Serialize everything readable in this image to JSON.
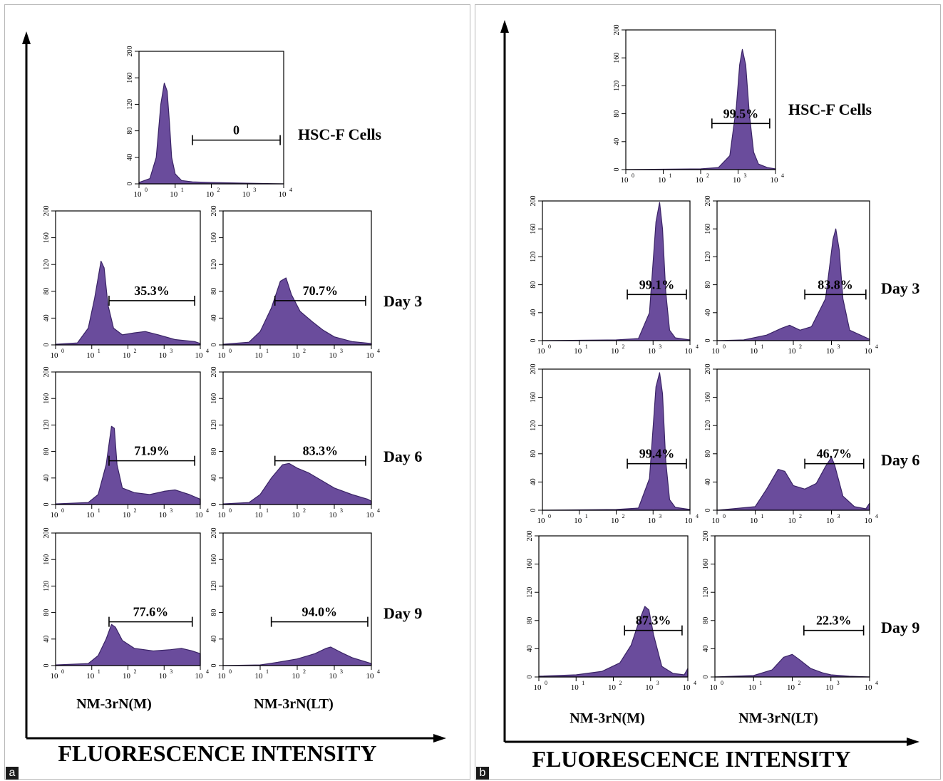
{
  "colors": {
    "fill": "#6a4c9c",
    "edge": "#3a2466",
    "axis": "#000000"
  },
  "x_tick_labels": [
    "10",
    "10",
    "10",
    "10",
    "10"
  ],
  "x_tick_exponents": [
    "0",
    "1",
    "2",
    "3",
    "4"
  ],
  "y_tick_labels": [
    "0",
    "40",
    "80",
    "120",
    "160",
    "200"
  ],
  "panels": [
    {
      "letter": "a",
      "axis_title": "FLUORESCENCE INTENSITY",
      "cell_line_title": "HSC-F Cells",
      "column_labels": [
        "NM-3rN(M)",
        "NM-3rN(LT)"
      ],
      "day_labels": [
        "Day 3",
        "Day 6",
        "Day 9"
      ]
    },
    {
      "letter": "b",
      "axis_title": "FLUORESCENCE INTENSITY",
      "cell_line_title": "HSC-F Cells",
      "column_labels": [
        "NM-3rN(M)",
        "NM-3rN(LT)"
      ],
      "day_labels": [
        "Day 3",
        "Day 6",
        "Day 9"
      ]
    }
  ],
  "chart_data": [
    {
      "type": "area",
      "panel": "a",
      "row": "HSC-F Cells",
      "column": "",
      "xscale": "log",
      "xlim": [
        1,
        10000
      ],
      "ylim": [
        0,
        200
      ],
      "gate_label": "0",
      "gate_range": [
        30,
        8000
      ],
      "x": [
        1,
        2,
        3,
        4,
        5,
        6,
        7,
        8,
        10,
        15,
        30,
        100,
        1000,
        10000
      ],
      "y": [
        2,
        8,
        40,
        120,
        152,
        140,
        90,
        40,
        15,
        5,
        3,
        2,
        1,
        0
      ]
    },
    {
      "type": "area",
      "panel": "a",
      "row": "Day 3",
      "column": "NM-3rN(M)",
      "xscale": "log",
      "xlim": [
        1,
        10000
      ],
      "ylim": [
        0,
        200
      ],
      "gate_label": "35.3%",
      "gate_range": [
        30,
        7000
      ],
      "x": [
        1,
        4,
        8,
        12,
        18,
        22,
        28,
        40,
        70,
        150,
        300,
        700,
        2000,
        7000,
        10000
      ],
      "y": [
        1,
        3,
        25,
        70,
        125,
        115,
        60,
        25,
        15,
        18,
        20,
        15,
        8,
        5,
        2
      ]
    },
    {
      "type": "area",
      "panel": "a",
      "row": "Day 3",
      "column": "NM-3rN(LT)",
      "xscale": "log",
      "xlim": [
        1,
        10000
      ],
      "ylim": [
        0,
        200
      ],
      "gate_label": "70.7%",
      "gate_range": [
        25,
        7000
      ],
      "x": [
        1,
        5,
        10,
        20,
        35,
        50,
        70,
        120,
        250,
        500,
        1000,
        3000,
        10000
      ],
      "y": [
        1,
        4,
        20,
        55,
        95,
        100,
        75,
        50,
        35,
        22,
        12,
        5,
        2
      ]
    },
    {
      "type": "area",
      "panel": "a",
      "row": "Day 6",
      "column": "NM-3rN(M)",
      "xscale": "log",
      "xlim": [
        1,
        10000
      ],
      "ylim": [
        0,
        200
      ],
      "gate_label": "71.9%",
      "gate_range": [
        30,
        7000
      ],
      "x": [
        1,
        8,
        15,
        25,
        35,
        42,
        50,
        70,
        150,
        400,
        1000,
        2000,
        5000,
        10000
      ],
      "y": [
        1,
        3,
        15,
        60,
        118,
        115,
        60,
        25,
        18,
        15,
        20,
        22,
        15,
        8
      ]
    },
    {
      "type": "area",
      "panel": "a",
      "row": "Day 6",
      "column": "NM-3rN(LT)",
      "xscale": "log",
      "xlim": [
        1,
        10000
      ],
      "ylim": [
        0,
        200
      ],
      "gate_label": "83.3%",
      "gate_range": [
        25,
        7000
      ],
      "x": [
        1,
        5,
        10,
        20,
        40,
        60,
        100,
        200,
        500,
        1000,
        3000,
        8000,
        10000
      ],
      "y": [
        1,
        3,
        15,
        40,
        60,
        62,
        55,
        48,
        35,
        25,
        15,
        8,
        5
      ]
    },
    {
      "type": "area",
      "panel": "a",
      "row": "Day 9",
      "column": "NM-3rN(M)",
      "xscale": "log",
      "xlim": [
        1,
        10000
      ],
      "ylim": [
        0,
        200
      ],
      "gate_label": "77.6%",
      "gate_range": [
        30,
        6000
      ],
      "x": [
        1,
        8,
        15,
        25,
        35,
        45,
        70,
        150,
        500,
        1500,
        3000,
        6000,
        10000
      ],
      "y": [
        1,
        3,
        15,
        40,
        62,
        58,
        38,
        26,
        22,
        24,
        26,
        22,
        18
      ]
    },
    {
      "type": "area",
      "panel": "a",
      "row": "Day 9",
      "column": "NM-3rN(LT)",
      "xscale": "log",
      "xlim": [
        1,
        10000
      ],
      "ylim": [
        0,
        200
      ],
      "gate_label": "94.0%",
      "gate_range": [
        20,
        8000
      ],
      "x": [
        1,
        10,
        30,
        100,
        300,
        600,
        800,
        1500,
        3000,
        10000
      ],
      "y": [
        0,
        1,
        5,
        10,
        18,
        26,
        28,
        20,
        12,
        3
      ]
    },
    {
      "type": "area",
      "panel": "b",
      "row": "HSC-F Cells",
      "column": "",
      "xscale": "log",
      "xlim": [
        1,
        10000
      ],
      "ylim": [
        0,
        200
      ],
      "gate_label": "99.5%",
      "gate_range": [
        200,
        7000
      ],
      "x": [
        1,
        100,
        300,
        600,
        900,
        1100,
        1300,
        1600,
        2000,
        2600,
        3500,
        6000,
        10000
      ],
      "y": [
        0,
        1,
        3,
        20,
        90,
        150,
        172,
        150,
        80,
        25,
        8,
        3,
        1
      ]
    },
    {
      "type": "area",
      "panel": "b",
      "row": "Day 3",
      "column": "NM-3rN(M)",
      "xscale": "log",
      "xlim": [
        1,
        10000
      ],
      "ylim": [
        0,
        200
      ],
      "gate_label": "99.1%",
      "gate_range": [
        200,
        8000
      ],
      "x": [
        1,
        100,
        400,
        800,
        1200,
        1500,
        1800,
        2200,
        2800,
        4000,
        10000
      ],
      "y": [
        0,
        1,
        3,
        40,
        170,
        198,
        160,
        70,
        15,
        4,
        1
      ]
    },
    {
      "type": "area",
      "panel": "b",
      "row": "Day 3",
      "column": "NM-3rN(LT)",
      "xscale": "log",
      "xlim": [
        1,
        10000
      ],
      "ylim": [
        0,
        200
      ],
      "gate_label": "83.8%",
      "gate_range": [
        200,
        8000
      ],
      "x": [
        1,
        5,
        20,
        50,
        80,
        150,
        300,
        700,
        1100,
        1300,
        1600,
        2000,
        3000,
        10000
      ],
      "y": [
        0,
        1,
        8,
        18,
        22,
        15,
        20,
        60,
        145,
        160,
        130,
        60,
        15,
        2
      ]
    },
    {
      "type": "area",
      "panel": "b",
      "row": "Day 6",
      "column": "NM-3rN(M)",
      "xscale": "log",
      "xlim": [
        1,
        10000
      ],
      "ylim": [
        0,
        200
      ],
      "gate_label": "99.4%",
      "gate_range": [
        200,
        8000
      ],
      "x": [
        1,
        100,
        400,
        800,
        1200,
        1500,
        1800,
        2200,
        2800,
        4000,
        10000
      ],
      "y": [
        0,
        1,
        3,
        45,
        175,
        195,
        165,
        70,
        15,
        4,
        1
      ]
    },
    {
      "type": "area",
      "panel": "b",
      "row": "Day 6",
      "column": "NM-3rN(LT)",
      "xscale": "log",
      "xlim": [
        1,
        10000
      ],
      "ylim": [
        0,
        200
      ],
      "gate_label": "46.7%",
      "gate_range": [
        200,
        7000
      ],
      "x": [
        1,
        10,
        20,
        40,
        60,
        100,
        200,
        400,
        700,
        1000,
        1200,
        2000,
        4000,
        8000,
        10000
      ],
      "y": [
        0,
        5,
        30,
        58,
        55,
        35,
        30,
        38,
        62,
        75,
        65,
        20,
        5,
        2,
        10
      ]
    },
    {
      "type": "area",
      "panel": "b",
      "row": "Day 9",
      "column": "NM-3rN(M)",
      "xscale": "log",
      "xlim": [
        1,
        10000
      ],
      "ylim": [
        0,
        200
      ],
      "gate_label": "87.3%",
      "gate_range": [
        200,
        7000
      ],
      "x": [
        1,
        10,
        50,
        150,
        300,
        500,
        700,
        900,
        1200,
        2000,
        4000,
        8000,
        10000
      ],
      "y": [
        1,
        3,
        8,
        20,
        45,
        80,
        100,
        95,
        60,
        15,
        5,
        3,
        12
      ]
    },
    {
      "type": "area",
      "panel": "b",
      "row": "Day 9",
      "column": "NM-3rN(LT)",
      "xscale": "log",
      "xlim": [
        1,
        10000
      ],
      "ylim": [
        0,
        200
      ],
      "gate_label": "22.3%",
      "gate_range": [
        200,
        7000
      ],
      "x": [
        1,
        10,
        30,
        60,
        100,
        150,
        300,
        600,
        1000,
        3000,
        10000
      ],
      "y": [
        0,
        2,
        10,
        28,
        32,
        25,
        12,
        6,
        3,
        1,
        0
      ]
    }
  ]
}
